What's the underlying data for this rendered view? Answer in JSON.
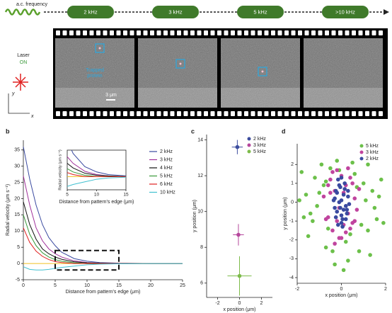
{
  "figure_a": {
    "frequency_label": "a.c. frequency",
    "steps": [
      "2 kHz",
      "3 kHz",
      "5 kHz",
      ">10 kHz"
    ],
    "laser": "Laser",
    "laser_state": "ON",
    "annotation": [
      "Trapped",
      "protein"
    ],
    "scale": "3 μm",
    "axis_y": "y",
    "axis_x": "x"
  },
  "chart_data": [
    {
      "type": "line",
      "label": "b",
      "xlabel": "Distance from pattern's edge (μm)",
      "ylabel": "Radial velocity (μm s⁻¹)",
      "x": [
        0,
        1,
        2,
        3,
        4,
        5,
        6,
        8,
        10,
        12,
        15,
        20,
        25
      ],
      "series": [
        {
          "name": "2 kHz",
          "color": "#3a4aa0",
          "values": [
            36,
            26,
            18,
            12,
            8,
            5.5,
            3.5,
            1.5,
            0.7,
            0.3,
            0.1,
            0,
            0
          ]
        },
        {
          "name": "3 kHz",
          "color": "#a0309a",
          "values": [
            27,
            18,
            11,
            7,
            4.5,
            3,
            2,
            0.8,
            0.3,
            0.1,
            0,
            0,
            0
          ]
        },
        {
          "name": "4 kHz",
          "color": "#111111",
          "values": [
            19,
            12,
            7.5,
            4.5,
            3,
            2,
            1.3,
            0.5,
            0.2,
            0.1,
            0,
            0,
            0
          ]
        },
        {
          "name": "5 kHz",
          "color": "#3a9a3a",
          "values": [
            15,
            9,
            5.5,
            3.3,
            2,
            1.2,
            0.7,
            0.2,
            0,
            0,
            0,
            0,
            0
          ]
        },
        {
          "name": "6 kHz",
          "color": "#e02020",
          "values": [
            11,
            6.5,
            3.8,
            2.2,
            1.2,
            0.6,
            0.3,
            0,
            0,
            0,
            0,
            0,
            0
          ]
        },
        {
          "name": "10 kHz",
          "color": "#40c0d0",
          "values": [
            -1,
            -1.8,
            -2,
            -2,
            -1.8,
            -1.5,
            -1.2,
            -0.8,
            -0.4,
            -0.2,
            -0.1,
            0,
            0
          ]
        }
      ],
      "xlim": [
        0,
        25
      ],
      "ylim": [
        -5,
        38
      ],
      "xticks": [
        0,
        5,
        10,
        15,
        20,
        25
      ],
      "yticks": [
        -5,
        0,
        5,
        10,
        15,
        20,
        25,
        30,
        35
      ],
      "zero_line_color": "#f0c020",
      "legend": "upper right",
      "inset": {
        "xlabel": "Distance from pattern's edge (μm)",
        "ylabel": "Radial velocity (μm s⁻¹)",
        "xlim": [
          5,
          15
        ],
        "ylim": [
          -2,
          4
        ],
        "xticks": [
          5,
          10,
          15
        ]
      }
    },
    {
      "type": "errorbar",
      "label": "c",
      "xlabel": "x position (μm)",
      "ylabel": "y position (μm)",
      "series": [
        {
          "name": "2 kHz",
          "color": "#3c4d9e",
          "x": [
            -0.2
          ],
          "values": [
            13.6
          ],
          "x_err": [
            0.5
          ],
          "y_err": [
            0.4
          ]
        },
        {
          "name": "3 kHz",
          "color": "#b5469c",
          "x": [
            -0.1
          ],
          "values": [
            8.7
          ],
          "x_err": [
            0.5
          ],
          "y_err": [
            0.6
          ]
        },
        {
          "name": "5 kHz",
          "color": "#7dbb4a",
          "x": [
            0
          ],
          "values": [
            6.4
          ],
          "x_err": [
            1.1
          ],
          "y_err": [
            1.1
          ]
        }
      ],
      "xlim": [
        -3,
        3
      ],
      "ylim": [
        5.2,
        14.3
      ],
      "xticks": [
        -2,
        0,
        2
      ],
      "yticks": [
        6,
        8,
        10,
        12,
        14
      ],
      "legend": "upper right"
    },
    {
      "type": "scatter",
      "label": "d",
      "xlabel": "x position (μm)",
      "ylabel": "y position (μm)",
      "series": [
        {
          "name": "5 kHz",
          "color": "#6cc04a",
          "x": [
            -1.8,
            -1.6,
            -1.4,
            -1.2,
            -1.5,
            -0.9,
            -0.7,
            -1.1,
            -0.5,
            -0.3,
            0.3,
            0.5,
            0.8,
            1.0,
            1.2,
            1.4,
            1.6,
            1.8,
            1.3,
            0.9,
            -0.8,
            -1.3,
            -0.6,
            0.6,
            1.1,
            -0.2,
            0.2,
            1.5,
            -1.7,
            -1.0,
            0.7,
            -0.4,
            0.4,
            1.7,
            -1.9,
            1.9,
            -0.7,
            0.1,
            -0.1,
            1.2
          ],
          "values": [
            1.6,
            0.4,
            -0.6,
            1.3,
            -1.8,
            2.0,
            -2.4,
            -0.2,
            1.8,
            -3.3,
            -3.1,
            2.1,
            -2.6,
            1.0,
            -1.5,
            0.6,
            -0.9,
            1.2,
            -2.8,
            -1.2,
            0.9,
            -1.0,
            -1.4,
            1.5,
            0.1,
            2.2,
            -2.1,
            -0.3,
            -0.8,
            0.5,
            0.8,
            -2.6,
            -1.7,
            0.3,
            0.1,
            -1.1,
            1.1,
            -3.6,
            1.7,
            2.0
          ]
        },
        {
          "name": "3 kHz",
          "color": "#c0449e",
          "x": [
            -0.8,
            -0.6,
            -0.5,
            -0.4,
            -0.3,
            -0.2,
            -0.1,
            0,
            0.1,
            0.2,
            0.3,
            0.4,
            0.5,
            0.6,
            0.7,
            -0.7,
            -0.5,
            -0.3,
            0.3,
            0.5,
            -0.2,
            0.2,
            0,
            -0.4,
            0.4,
            -0.6,
            0.6,
            0.1,
            -0.1,
            0.8
          ],
          "values": [
            0.3,
            -0.8,
            1.2,
            -1.5,
            0.6,
            1.7,
            -1.9,
            1.4,
            -1.2,
            0.9,
            -0.6,
            1.3,
            -1.1,
            0.2,
            -0.4,
            -0.9,
            0.5,
            -2.2,
            1.8,
            1.0,
            -1.0,
            -1.6,
            -1.9,
            1.6,
            -1.4,
            0.9,
            -1.0,
            0.5,
            -0.3,
            0.7
          ]
        },
        {
          "name": "2 kHz",
          "color": "#3a4aa0",
          "x": [
            -0.3,
            -0.2,
            -0.1,
            0,
            0.1,
            0.2,
            0.3,
            -0.25,
            -0.15,
            -0.05,
            0.05,
            0.15,
            0.25,
            -0.35,
            0.35,
            -0.2,
            0.2,
            0,
            -0.1,
            0.1,
            -0.3,
            0.3,
            0,
            -0.15,
            0.15,
            -0.05,
            0.05,
            -0.25,
            0.25,
            0
          ],
          "values": [
            0.2,
            -0.5,
            0.9,
            -1.1,
            0.4,
            -0.2,
            0.6,
            -0.8,
            1.2,
            -0.3,
            -1.3,
            0.7,
            -0.6,
            0.1,
            -0.1,
            0.5,
            -0.9,
            1.3,
            0,
            -0.4,
            -0.3,
            0.3,
            -0.7,
            -1.2,
            1.0,
            0.8,
            -0.9,
            0.6,
            -0.4,
            0.1
          ]
        }
      ],
      "xlim": [
        -2,
        2
      ],
      "ylim": [
        -4.3,
        3.1
      ],
      "xticks": [
        -2,
        0,
        2
      ],
      "yticks": [
        -4,
        -3,
        -2,
        -1,
        0,
        1,
        2
      ],
      "legend": "upper right"
    }
  ]
}
